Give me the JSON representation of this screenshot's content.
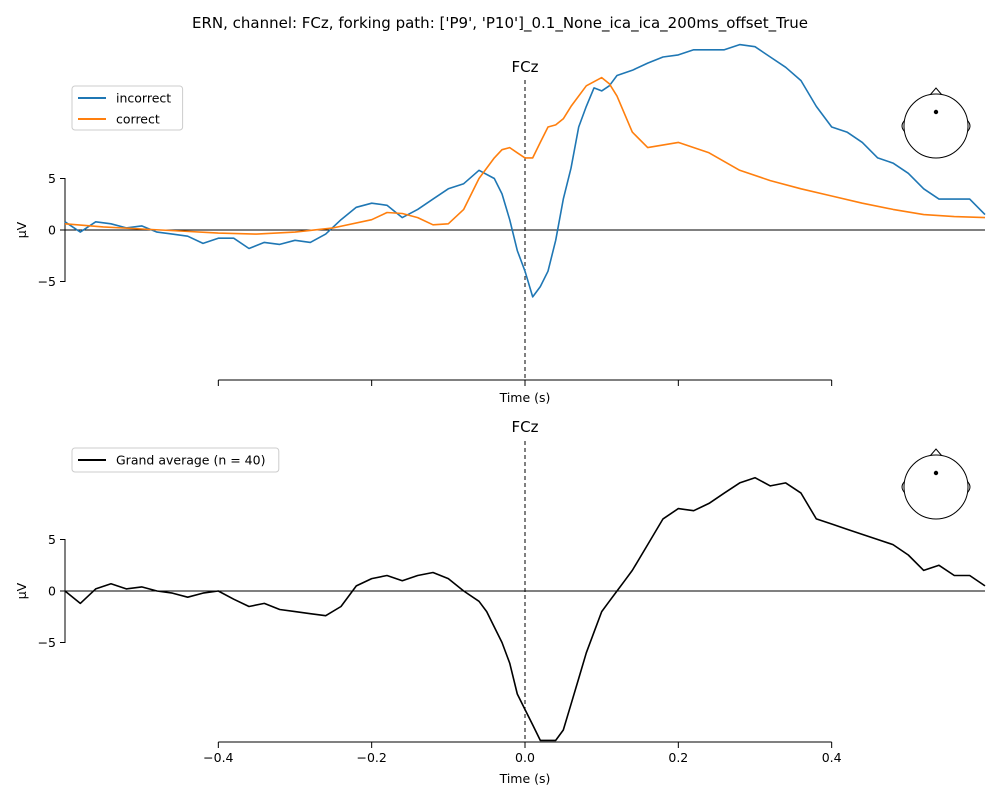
{
  "figure": {
    "suptitle": "ERN, channel: FCz, forking path: ['P9', 'P10']_0.1_None_ica_ica_200ms_offset_True"
  },
  "colors": {
    "incorrect": "#1f77b4",
    "correct": "#ff7f0e",
    "grand_average": "#000000"
  },
  "chart_data": [
    {
      "type": "line",
      "title": "FCz",
      "xlabel": "Time (s)",
      "ylabel": "µV",
      "xlim": [
        -0.6,
        0.6
      ],
      "ylim": [
        -15,
        18
      ],
      "xticks": [
        -0.4,
        -0.2,
        0.0,
        0.2,
        0.4
      ],
      "xtick_labels": [
        "",
        "",
        "",
        "",
        ""
      ],
      "yticks": [
        -5,
        0,
        5
      ],
      "ytick_labels": [
        "−5",
        "0",
        "5"
      ],
      "legend": "top-left",
      "vline_at": 0.0,
      "hline_at": 0.0,
      "head_inset": "top-right",
      "series": [
        {
          "name": "incorrect",
          "color": "#1f77b4",
          "x": [
            -0.6,
            -0.58,
            -0.56,
            -0.54,
            -0.52,
            -0.5,
            -0.48,
            -0.46,
            -0.44,
            -0.42,
            -0.4,
            -0.38,
            -0.36,
            -0.34,
            -0.32,
            -0.3,
            -0.28,
            -0.26,
            -0.24,
            -0.22,
            -0.2,
            -0.18,
            -0.16,
            -0.14,
            -0.12,
            -0.1,
            -0.08,
            -0.06,
            -0.04,
            -0.03,
            -0.02,
            -0.01,
            0.0,
            0.01,
            0.02,
            0.03,
            0.04,
            0.05,
            0.06,
            0.07,
            0.08,
            0.09,
            0.1,
            0.11,
            0.12,
            0.14,
            0.16,
            0.18,
            0.2,
            0.22,
            0.24,
            0.26,
            0.28,
            0.3,
            0.32,
            0.34,
            0.36,
            0.38,
            0.4,
            0.42,
            0.44,
            0.46,
            0.48,
            0.5,
            0.52,
            0.54,
            0.56,
            0.58,
            0.6
          ],
          "y": [
            0.8,
            -0.2,
            0.8,
            0.6,
            0.2,
            0.4,
            -0.2,
            -0.4,
            -0.6,
            -1.3,
            -0.8,
            -0.8,
            -1.8,
            -1.2,
            -1.4,
            -1.0,
            -1.2,
            -0.4,
            1.0,
            2.2,
            2.6,
            2.4,
            1.2,
            2.0,
            3.0,
            4.0,
            4.5,
            5.8,
            5.0,
            3.5,
            1.0,
            -2.0,
            -4.0,
            -6.5,
            -5.5,
            -4.0,
            -1.0,
            3.0,
            6.0,
            10.0,
            12.0,
            13.8,
            13.5,
            14.0,
            15.0,
            15.5,
            16.2,
            16.8,
            17.0,
            17.5,
            17.5,
            17.5,
            18.0,
            17.8,
            16.8,
            15.8,
            14.5,
            12.0,
            10.0,
            9.5,
            8.5,
            7.0,
            6.5,
            5.5,
            4.0,
            3.0,
            3.0,
            3.0,
            1.5
          ]
        },
        {
          "name": "correct",
          "color": "#ff7f0e",
          "x": [
            -0.6,
            -0.55,
            -0.5,
            -0.45,
            -0.4,
            -0.35,
            -0.3,
            -0.25,
            -0.2,
            -0.18,
            -0.16,
            -0.14,
            -0.12,
            -0.1,
            -0.08,
            -0.06,
            -0.04,
            -0.03,
            -0.02,
            -0.01,
            0.0,
            0.01,
            0.02,
            0.03,
            0.04,
            0.05,
            0.06,
            0.08,
            0.1,
            0.11,
            0.12,
            0.14,
            0.16,
            0.2,
            0.24,
            0.28,
            0.32,
            0.36,
            0.4,
            0.44,
            0.48,
            0.52,
            0.56,
            0.6
          ],
          "y": [
            0.6,
            0.3,
            0.1,
            -0.1,
            -0.3,
            -0.4,
            -0.2,
            0.2,
            1.0,
            1.7,
            1.6,
            1.2,
            0.5,
            0.6,
            2.0,
            5.0,
            7.0,
            7.8,
            8.0,
            7.5,
            7.0,
            7.0,
            8.5,
            10.0,
            10.2,
            10.8,
            12.0,
            14.0,
            14.8,
            14.2,
            13.0,
            9.5,
            8.0,
            8.5,
            7.5,
            5.8,
            4.8,
            4.0,
            3.3,
            2.6,
            2.0,
            1.5,
            1.3,
            1.2
          ]
        }
      ]
    },
    {
      "type": "line",
      "title": "FCz",
      "xlabel": "Time (s)",
      "ylabel": "µV",
      "xlim": [
        -0.6,
        0.6
      ],
      "ylim": [
        -15,
        18
      ],
      "xticks": [
        -0.4,
        -0.2,
        0.0,
        0.2,
        0.4
      ],
      "xtick_labels": [
        "−0.4",
        "−0.2",
        "0.0",
        "0.2",
        "0.4"
      ],
      "yticks": [
        -5,
        0,
        5
      ],
      "ytick_labels": [
        "−5",
        "0",
        "5"
      ],
      "legend": "top-left",
      "vline_at": 0.0,
      "hline_at": 0.0,
      "head_inset": "top-right",
      "series": [
        {
          "name": "Grand average (n = 40)",
          "color": "#000000",
          "x": [
            -0.6,
            -0.58,
            -0.56,
            -0.54,
            -0.52,
            -0.5,
            -0.48,
            -0.46,
            -0.44,
            -0.42,
            -0.4,
            -0.38,
            -0.36,
            -0.34,
            -0.32,
            -0.3,
            -0.28,
            -0.26,
            -0.24,
            -0.22,
            -0.2,
            -0.18,
            -0.16,
            -0.14,
            -0.12,
            -0.1,
            -0.08,
            -0.06,
            -0.05,
            -0.04,
            -0.03,
            -0.02,
            -0.01,
            0.0,
            0.01,
            0.02,
            0.03,
            0.04,
            0.05,
            0.06,
            0.07,
            0.08,
            0.09,
            0.1,
            0.11,
            0.12,
            0.13,
            0.14,
            0.16,
            0.18,
            0.2,
            0.22,
            0.24,
            0.26,
            0.28,
            0.3,
            0.32,
            0.34,
            0.36,
            0.38,
            0.4,
            0.42,
            0.44,
            0.46,
            0.48,
            0.5,
            0.52,
            0.54,
            0.56,
            0.58,
            0.6
          ],
          "y": [
            0.0,
            -1.2,
            0.2,
            0.7,
            0.2,
            0.4,
            0.0,
            -0.2,
            -0.6,
            -0.2,
            0.0,
            -0.8,
            -1.5,
            -1.2,
            -1.8,
            -2.0,
            -2.2,
            -2.4,
            -1.5,
            0.5,
            1.2,
            1.5,
            1.0,
            1.5,
            1.8,
            1.2,
            0.0,
            -1.0,
            -2.0,
            -3.5,
            -5.0,
            -7.0,
            -10.0,
            -11.5,
            -13.0,
            -14.5,
            -14.5,
            -14.5,
            -13.5,
            -11.0,
            -8.5,
            -6.0,
            -4.0,
            -2.0,
            -1.0,
            0.0,
            1.0,
            2.0,
            4.5,
            7.0,
            8.0,
            7.8,
            8.5,
            9.5,
            10.5,
            11.0,
            10.2,
            10.5,
            9.5,
            7.0,
            6.5,
            6.0,
            5.5,
            5.0,
            4.5,
            3.5,
            2.0,
            2.5,
            1.5,
            1.5,
            0.5
          ]
        }
      ]
    }
  ]
}
